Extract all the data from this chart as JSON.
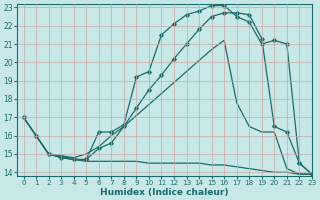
{
  "xlabel": "Humidex (Indice chaleur)",
  "background_color": "#c8e8e8",
  "grid_color": "#b8d8d8",
  "line_color": "#1a6b6b",
  "xlim": [
    -0.5,
    23
  ],
  "ylim": [
    13.8,
    23.2
  ],
  "xticks": [
    0,
    1,
    2,
    3,
    4,
    5,
    6,
    7,
    8,
    9,
    10,
    11,
    12,
    13,
    14,
    15,
    16,
    17,
    18,
    19,
    20,
    21,
    22,
    23
  ],
  "yticks": [
    14,
    15,
    16,
    17,
    18,
    19,
    20,
    21,
    22,
    23
  ],
  "curve1_x": [
    0,
    1,
    2,
    3,
    4,
    5,
    6,
    7,
    8,
    9,
    10,
    11,
    12,
    13,
    14,
    15,
    16,
    17,
    18,
    19,
    20,
    21,
    22,
    23
  ],
  "curve1_y": [
    17,
    16,
    15,
    14.9,
    14.7,
    14.7,
    16.2,
    16.2,
    16.6,
    19.2,
    19.5,
    21.5,
    22.1,
    22.6,
    22.8,
    23.1,
    23.1,
    22.5,
    22.2,
    21.0,
    21.2,
    21.0,
    14.5,
    13.9
  ],
  "curve2_x": [
    0,
    1,
    2,
    3,
    4,
    5,
    6,
    7,
    8,
    9,
    10,
    11,
    12,
    13,
    14,
    15,
    16,
    17,
    18,
    19,
    20,
    21,
    22,
    23
  ],
  "curve2_y": [
    17,
    16,
    15,
    14.8,
    14.7,
    14.6,
    14.6,
    14.6,
    14.6,
    14.6,
    14.5,
    14.5,
    14.5,
    14.5,
    14.5,
    14.4,
    14.4,
    14.3,
    14.2,
    14.1,
    14.0,
    14.0,
    13.9,
    13.9
  ],
  "curve3_x": [
    0,
    1,
    2,
    3,
    4,
    5,
    6,
    7,
    8,
    9,
    10,
    11,
    12,
    13,
    14,
    15,
    16,
    17,
    18,
    19,
    20,
    21,
    22,
    23
  ],
  "curve3_y": [
    17,
    16,
    15,
    14.8,
    14.7,
    14.7,
    15.3,
    15.6,
    16.5,
    17.5,
    18.5,
    19.3,
    20.2,
    21.0,
    21.8,
    22.5,
    22.7,
    22.7,
    22.6,
    21.3,
    16.5,
    16.2,
    14.5,
    13.9
  ],
  "curve4_x": [
    2,
    3,
    4,
    5,
    6,
    7,
    8,
    9,
    10,
    11,
    12,
    13,
    14,
    15,
    16,
    17,
    18,
    19,
    20,
    21,
    22,
    23
  ],
  "curve4_y": [
    15,
    14.9,
    14.8,
    15.0,
    15.4,
    16.0,
    16.5,
    17.1,
    17.7,
    18.3,
    18.9,
    19.5,
    20.1,
    20.7,
    21.2,
    17.8,
    16.5,
    16.2,
    16.2,
    14.2,
    13.9,
    13.9
  ]
}
